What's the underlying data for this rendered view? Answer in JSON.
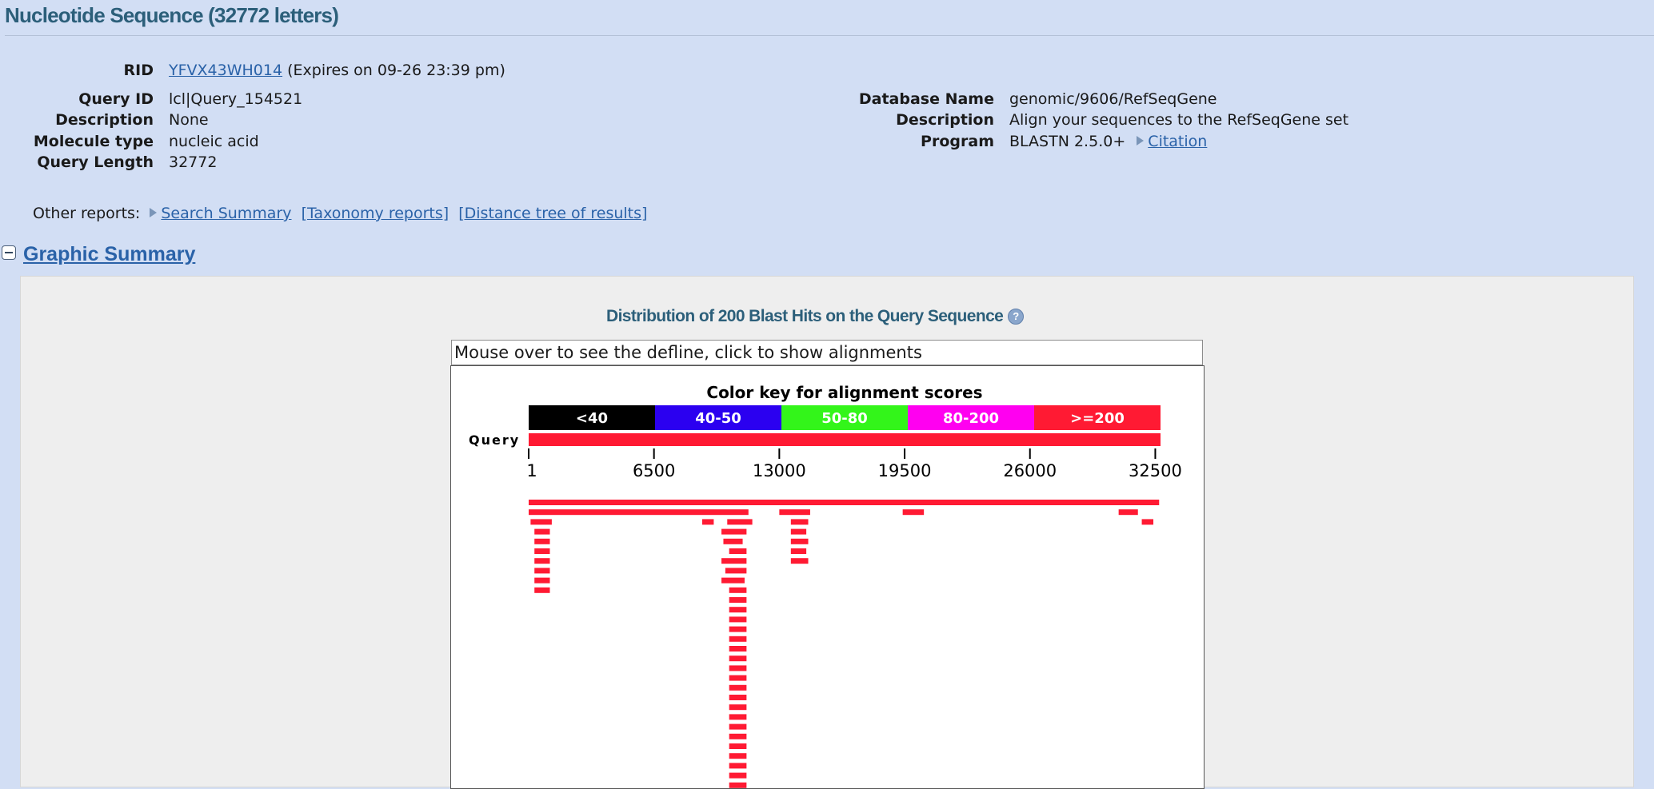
{
  "header": {
    "title": "Nucleotide Sequence (32772 letters)"
  },
  "rid": {
    "label": "RID",
    "value": "YFVX43WH014",
    "expires": "(Expires on 09-26 23:39 pm)"
  },
  "query_info": {
    "query_id_label": "Query ID",
    "query_id": "lcl|Query_154521",
    "description_label": "Description",
    "description": "None",
    "molecule_type_label": "Molecule type",
    "molecule_type": "nucleic acid",
    "query_length_label": "Query Length",
    "query_length": "32772"
  },
  "db_info": {
    "database_name_label": "Database Name",
    "database_name": "genomic/9606/RefSeqGene",
    "description_label": "Description",
    "description": "Align your sequences to the RefSeqGene set",
    "program_label": "Program",
    "program": "BLASTN 2.5.0+",
    "citation": "Citation"
  },
  "other_reports": {
    "label": "Other reports:",
    "search_summary": "Search Summary",
    "taxonomy": "[Taxonomy reports]",
    "distance_tree": "[Distance tree of results]"
  },
  "graphic_summary": {
    "title": "Graphic Summary",
    "distribution_title": "Distribution of 200 Blast Hits on the Query Sequence",
    "help_glyph": "?",
    "defline_text": "Mouse over to see the defline, click to show alignments",
    "color_key_title": "Color key for alignment scores",
    "query_label": "Query"
  },
  "colors": {
    "background": "#d2def4",
    "title": "#2c5f7a",
    "link": "#2a62a8",
    "score_lt40": "#000000",
    "score_40_50": "#2b00f0",
    "score_50_80": "#33f51a",
    "score_80_200": "#ff00f0",
    "score_ge200": "#ff1a33"
  },
  "chart_data": {
    "type": "bar",
    "title": "Color key for alignment scores",
    "legend": [
      {
        "label": "<40",
        "color": "#000000"
      },
      {
        "label": "40-50",
        "color": "#2b00f0"
      },
      {
        "label": "50-80",
        "color": "#33f51a"
      },
      {
        "label": "80-200",
        "color": "#ff00f0"
      },
      {
        "label": ">=200",
        "color": "#ff1a33"
      }
    ],
    "xlim": [
      1,
      32772
    ],
    "ticks": [
      "1",
      "6500",
      "13000",
      "19500",
      "26000",
      "32500"
    ],
    "tick_values": [
      1,
      6500,
      13000,
      19500,
      26000,
      32500
    ],
    "rows": [
      [
        [
          1,
          32700
        ]
      ],
      [
        [
          1,
          11400
        ],
        [
          13000,
          14600
        ],
        [
          19400,
          20500
        ],
        [
          30600,
          31600
        ]
      ],
      [
        [
          100,
          1200
        ],
        [
          9000,
          9600
        ],
        [
          10300,
          11600
        ],
        [
          13600,
          14500
        ],
        [
          31800,
          32400
        ]
      ],
      [
        [
          300,
          1100
        ],
        [
          10000,
          11300
        ],
        [
          13600,
          14400
        ]
      ],
      [
        [
          300,
          1100
        ],
        [
          10100,
          11100
        ],
        [
          13600,
          14500
        ]
      ],
      [
        [
          300,
          1100
        ],
        [
          10400,
          11300
        ],
        [
          13600,
          14400
        ]
      ],
      [
        [
          300,
          1100
        ],
        [
          10000,
          11300
        ],
        [
          13600,
          14500
        ]
      ],
      [
        [
          300,
          1100
        ],
        [
          10200,
          11300
        ]
      ],
      [
        [
          300,
          1100
        ],
        [
          10000,
          11200
        ]
      ],
      [
        [
          300,
          1100
        ],
        [
          10400,
          11300
        ]
      ],
      [
        [
          10400,
          11300
        ]
      ],
      [
        [
          10400,
          11300
        ]
      ],
      [
        [
          10400,
          11300
        ]
      ],
      [
        [
          10400,
          11300
        ]
      ],
      [
        [
          10400,
          11300
        ]
      ],
      [
        [
          10400,
          11300
        ]
      ],
      [
        [
          10400,
          11300
        ]
      ],
      [
        [
          10400,
          11300
        ]
      ],
      [
        [
          10400,
          11300
        ]
      ],
      [
        [
          10400,
          11300
        ]
      ],
      [
        [
          10400,
          11300
        ]
      ],
      [
        [
          10400,
          11300
        ]
      ],
      [
        [
          10400,
          11300
        ]
      ],
      [
        [
          10400,
          11300
        ]
      ],
      [
        [
          10400,
          11300
        ]
      ],
      [
        [
          10400,
          11300
        ]
      ],
      [
        [
          10400,
          11300
        ]
      ],
      [
        [
          10400,
          11300
        ]
      ],
      [
        [
          10400,
          11300
        ]
      ],
      [
        [
          10400,
          11300
        ]
      ]
    ]
  }
}
